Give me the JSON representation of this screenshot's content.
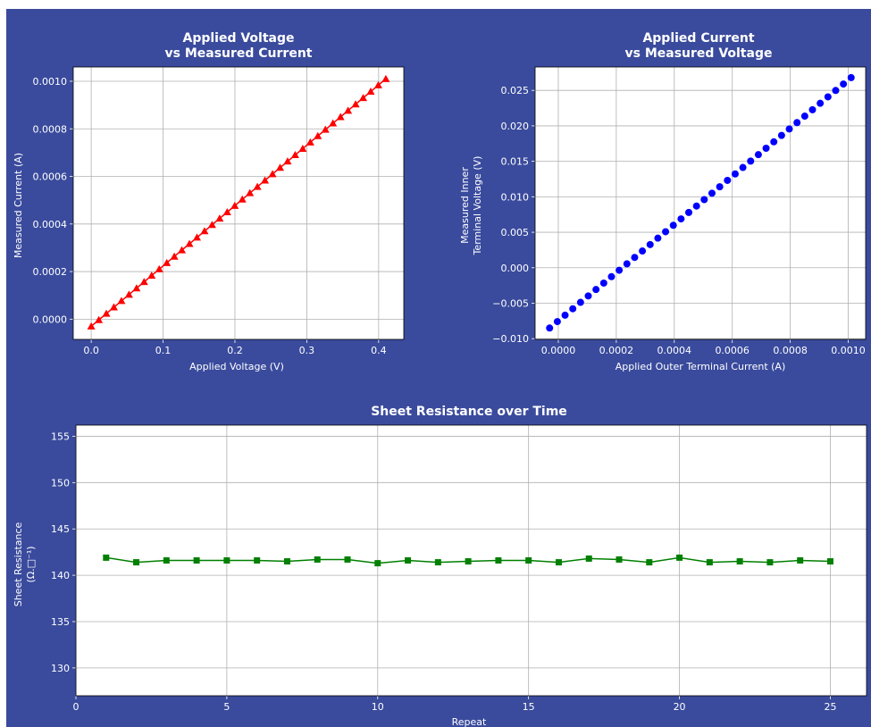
{
  "colors": {
    "figure_bg": "#3a4b9d",
    "plot_bg": "#ffffff",
    "text": "#ffffff",
    "grid": "#b0b0b0",
    "red": "#ff0000",
    "blue": "#0000ff",
    "green": "#008000"
  },
  "chart_data": [
    {
      "type": "scatter",
      "title_lines": [
        "Applied Voltage",
        "vs Measured Current"
      ],
      "xlabel": "Applied Voltage (V)",
      "ylabel_lines": [
        "Measured Current (A)"
      ],
      "xlim": [
        -0.025,
        0.435
      ],
      "ylim": [
        -8.5e-05,
        0.00106
      ],
      "xticks": [
        0.0,
        0.1,
        0.2,
        0.3,
        0.4
      ],
      "xtick_labels": [
        "0.0",
        "0.1",
        "0.2",
        "0.3",
        "0.4"
      ],
      "yticks": [
        0.0,
        0.0002,
        0.0004,
        0.0006,
        0.0008,
        0.001
      ],
      "ytick_labels": [
        "0.0000",
        "0.0002",
        "0.0004",
        "0.0006",
        "0.0008",
        "0.0010"
      ],
      "grid": true,
      "marker": "triangle",
      "color": "red",
      "line": true,
      "x_start": 0.0,
      "x_end": 0.41,
      "y_start": -3e-05,
      "y_end": 0.00101,
      "n_points": 40
    },
    {
      "type": "scatter",
      "title_lines": [
        "Applied Current",
        "vs Measured Voltage"
      ],
      "xlabel": "Applied Outer Terminal Current (A)",
      "ylabel_lines": [
        "Measured Inner",
        "Terminal Voltage (V)"
      ],
      "xlim": [
        -8e-05,
        0.00106
      ],
      "ylim": [
        -0.0101,
        0.0283
      ],
      "xticks": [
        0.0,
        0.0002,
        0.0004,
        0.0006,
        0.0008,
        0.001
      ],
      "xtick_labels": [
        "0.0000",
        "0.0002",
        "0.0004",
        "0.0006",
        "0.0008",
        "0.0010"
      ],
      "yticks": [
        -0.01,
        -0.005,
        0.0,
        0.005,
        0.01,
        0.015,
        0.02,
        0.025
      ],
      "ytick_labels": [
        "−0.010",
        "−0.005",
        "0.000",
        "0.005",
        "0.010",
        "0.015",
        "0.020",
        "0.025"
      ],
      "grid": true,
      "marker": "circle",
      "color": "blue",
      "line": false,
      "x_start": -3e-05,
      "x_end": 0.00101,
      "y_start": -0.0085,
      "y_end": 0.0268,
      "n_points": 40
    },
    {
      "type": "line",
      "title_lines": [
        "Sheet Resistance over Time"
      ],
      "xlabel": "Repeat",
      "ylabel_lines": [
        "Sheet Resistance",
        "(Ω.□⁻¹)"
      ],
      "xlim": [
        0,
        26.2
      ],
      "ylim": [
        127,
        156.2
      ],
      "xticks": [
        0,
        5,
        10,
        15,
        20,
        25
      ],
      "xtick_labels": [
        "0",
        "5",
        "10",
        "15",
        "20",
        "25"
      ],
      "yticks": [
        130,
        135,
        140,
        145,
        150,
        155
      ],
      "ytick_labels": [
        "130",
        "135",
        "140",
        "145",
        "150",
        "155"
      ],
      "grid": true,
      "marker": "square",
      "color": "green",
      "x": [
        1,
        2,
        3,
        4,
        5,
        6,
        7,
        8,
        9,
        10,
        11,
        12,
        13,
        14,
        15,
        16,
        17,
        18,
        19,
        20,
        21,
        22,
        23,
        24,
        25
      ],
      "y": [
        141.9,
        141.4,
        141.6,
        141.6,
        141.6,
        141.6,
        141.5,
        141.7,
        141.7,
        141.3,
        141.6,
        141.4,
        141.5,
        141.6,
        141.6,
        141.4,
        141.8,
        141.7,
        141.4,
        141.9,
        141.4,
        141.5,
        141.4,
        141.6,
        141.5
      ]
    }
  ]
}
